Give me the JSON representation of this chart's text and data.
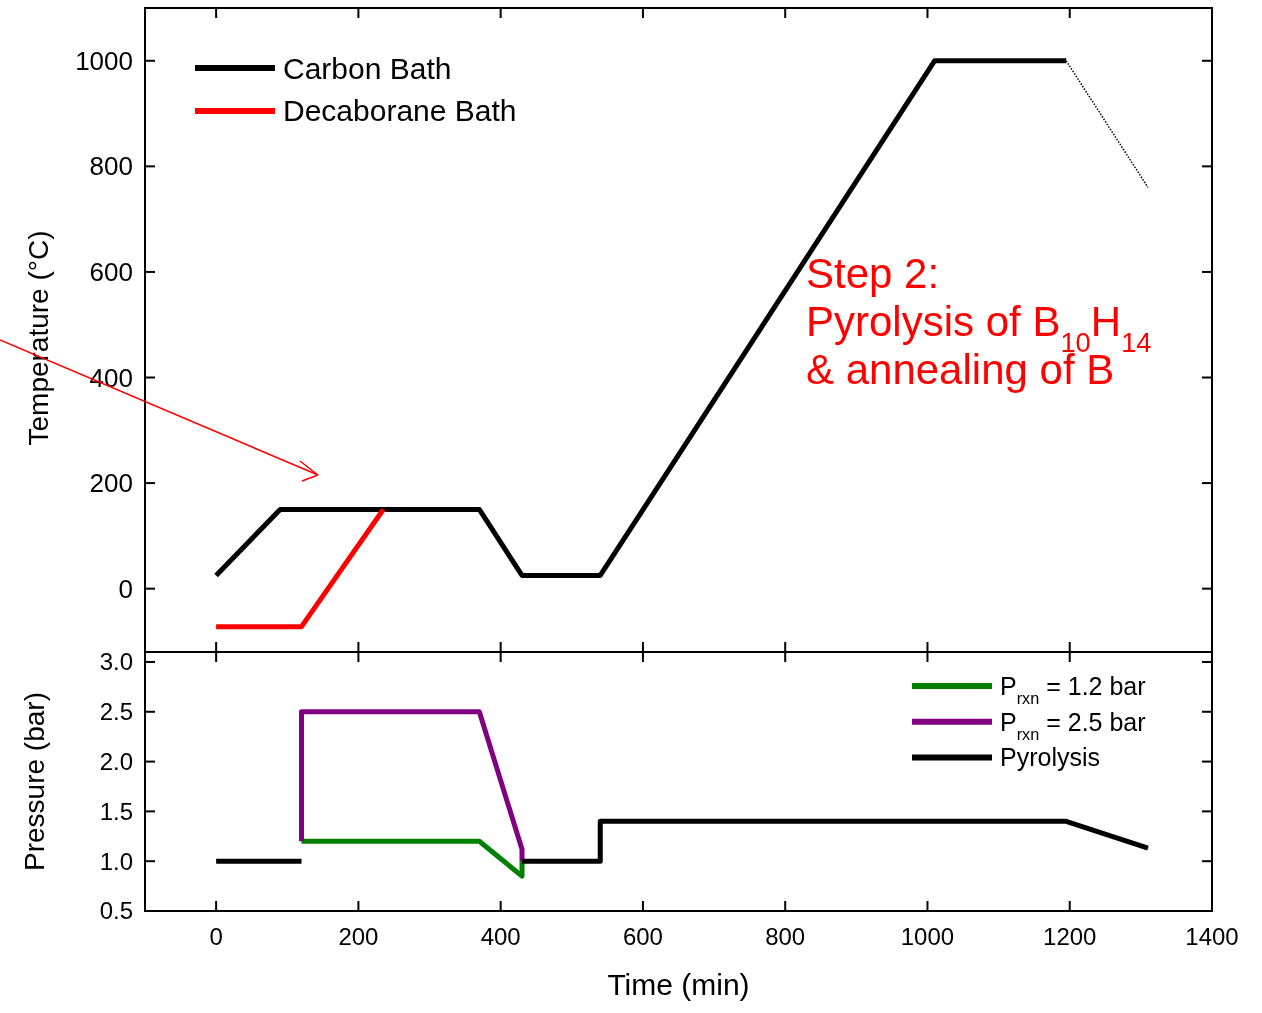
{
  "chart_data": [
    {
      "type": "line",
      "ylabel": "Temperature (°C)",
      "xlim": [
        -100,
        1400
      ],
      "xticks": [
        0,
        200,
        400,
        600,
        800,
        1000,
        1200,
        1400
      ],
      "ylim": [
        -120,
        1100
      ],
      "yticks": [
        0,
        200,
        400,
        600,
        800,
        1000
      ],
      "tick_labels": "y",
      "legend": "top left",
      "annotations": [
        "Step 2:\nPyrolysis of B$_{10}$H$_{14}$\n& annealing of B"
      ],
      "series": [
        {
          "name": "Carbon Bath",
          "color": "#000000",
          "x": [
            0,
            90,
            370,
            430,
            540,
            1010,
            1195
          ],
          "values": [
            25,
            150,
            150,
            25,
            25,
            1000,
            1000
          ]
        },
        {
          "name": "Decaborane Bath",
          "color": "#ff0000",
          "x": [
            0,
            120,
            235
          ],
          "values": [
            -72,
            -72,
            150
          ]
        },
        {
          "color": "#000000",
          "line_style": "dotted",
          "x": [
            1195,
            1310
          ],
          "values": [
            1000,
            760
          ]
        }
      ]
    },
    {
      "type": "line",
      "xlabel": "Time (min)",
      "ylabel": "Pressure (bar)",
      "xlim": [
        -100,
        1400
      ],
      "xticks": [
        0,
        200,
        400,
        600,
        800,
        1000,
        1200,
        1400
      ],
      "ylim": [
        0.5,
        3.1
      ],
      "yticks": [
        {
          "value": 0.5,
          "label": "0.5"
        },
        {
          "value": 1,
          "label": "1.0"
        },
        {
          "value": 1.5,
          "label": "1.5"
        },
        {
          "value": 2,
          "label": "2.0"
        },
        {
          "value": 2.5,
          "label": "2.5"
        },
        {
          "value": 3,
          "label": "3.0"
        }
      ],
      "legend": "top right",
      "series": [
        {
          "name": "P$_{rxn}$ = 1.2 bar",
          "color": "#008000",
          "x": [
            120,
            370,
            430,
            430
          ],
          "values": [
            1.2,
            1.2,
            0.85,
            1.0
          ]
        },
        {
          "name": "P$_{rxn}$ = 2.5 bar",
          "color": "#800080",
          "x": [
            120,
            120,
            370,
            430,
            430
          ],
          "values": [
            1.2,
            2.5,
            2.5,
            1.12,
            1.0
          ]
        },
        {
          "color": "#000000",
          "x": [
            0,
            120
          ],
          "values": [
            1.0,
            1.0
          ]
        },
        {
          "name": "Pyrolysis",
          "color": "#000000",
          "x": [
            430,
            540,
            540,
            1195,
            1310
          ],
          "values": [
            1.0,
            1.0,
            1.4,
            1.4,
            1.13
          ]
        }
      ]
    }
  ]
}
